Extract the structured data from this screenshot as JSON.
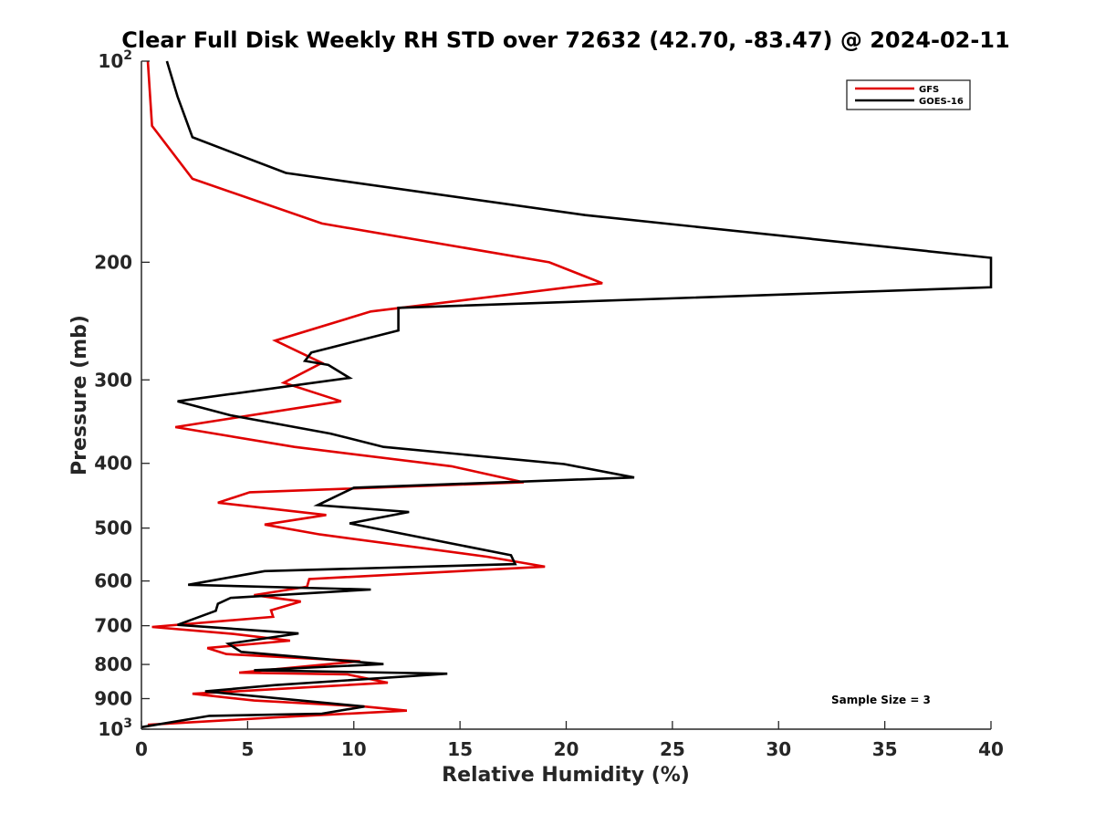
{
  "chart_data": {
    "type": "line",
    "title": "Clear Full Disk Weekly RH STD over 72632 (42.70, -83.47) @ 2024-02-11",
    "xlabel": "Relative Humidity (%)",
    "ylabel": "Pressure (mb)",
    "xlim": [
      0,
      40
    ],
    "ylim": [
      100,
      1000
    ],
    "yscale": "log",
    "y_reversed": true,
    "grid": false,
    "legend_position": "top-right",
    "xticks": [
      0,
      5,
      10,
      15,
      20,
      25,
      30,
      35,
      40
    ],
    "yticks": [
      {
        "value": 100,
        "label": "10",
        "sup": "2"
      },
      {
        "value": 200,
        "label": "200"
      },
      {
        "value": 300,
        "label": "300"
      },
      {
        "value": 400,
        "label": "400"
      },
      {
        "value": 500,
        "label": "500"
      },
      {
        "value": 600,
        "label": "600"
      },
      {
        "value": 700,
        "label": "700"
      },
      {
        "value": 800,
        "label": "800"
      },
      {
        "value": 900,
        "label": "900"
      },
      {
        "value": 1000,
        "label": "10",
        "sup": "3"
      }
    ],
    "annotation": "Sample Size = 3",
    "series": [
      {
        "name": "GFS",
        "color": "#e00000",
        "points": [
          [
            0.3,
            100
          ],
          [
            0.5,
            125
          ],
          [
            2.4,
            150
          ],
          [
            8.5,
            175
          ],
          [
            19.2,
            200
          ],
          [
            21.7,
            215
          ],
          [
            10.8,
            237
          ],
          [
            6.3,
            262
          ],
          [
            8.5,
            283
          ],
          [
            6.7,
            303
          ],
          [
            9.4,
            323
          ],
          [
            1.6,
            353
          ],
          [
            7.2,
            378
          ],
          [
            14.6,
            404
          ],
          [
            18.0,
            427
          ],
          [
            5.1,
            442
          ],
          [
            3.6,
            458
          ],
          [
            8.7,
            478
          ],
          [
            5.8,
            494
          ],
          [
            8.4,
            511
          ],
          [
            16.3,
            552
          ],
          [
            19.0,
            571
          ],
          [
            7.9,
            596
          ],
          [
            7.8,
            612
          ],
          [
            5.3,
            630
          ],
          [
            7.5,
            644
          ],
          [
            6.1,
            664
          ],
          [
            6.2,
            679
          ],
          [
            0.5,
            703
          ],
          [
            4.3,
            720
          ],
          [
            7.0,
            737
          ],
          [
            3.1,
            756
          ],
          [
            4.0,
            772
          ],
          [
            10.3,
            791
          ],
          [
            4.6,
            823
          ],
          [
            9.7,
            828
          ],
          [
            11.6,
            852
          ],
          [
            2.4,
            885
          ],
          [
            5.3,
            906
          ],
          [
            10.5,
            925
          ],
          [
            12.5,
            938
          ],
          [
            6.4,
            960
          ],
          [
            0.3,
            985
          ]
        ]
      },
      {
        "name": "GOES-16",
        "color": "#000000",
        "points": [
          [
            1.2,
            100
          ],
          [
            1.7,
            113
          ],
          [
            2.4,
            130
          ],
          [
            6.8,
            147
          ],
          [
            20.9,
            170
          ],
          [
            40.0,
            197
          ],
          [
            40.0,
            218
          ],
          [
            12.1,
            234
          ],
          [
            12.1,
            253
          ],
          [
            8.0,
            273
          ],
          [
            7.7,
            281
          ],
          [
            8.8,
            285
          ],
          [
            9.8,
            298
          ],
          [
            1.7,
            323
          ],
          [
            4.2,
            339
          ],
          [
            8.9,
            361
          ],
          [
            11.4,
            378
          ],
          [
            19.9,
            401
          ],
          [
            23.2,
            420
          ],
          [
            10.0,
            435
          ],
          [
            8.3,
            462
          ],
          [
            12.6,
            473
          ],
          [
            9.8,
            492
          ],
          [
            11.2,
            502
          ],
          [
            17.4,
            549
          ],
          [
            17.6,
            566
          ],
          [
            5.8,
            580
          ],
          [
            2.2,
            608
          ],
          [
            10.8,
            618
          ],
          [
            4.2,
            636
          ],
          [
            3.6,
            649
          ],
          [
            3.5,
            665
          ],
          [
            1.7,
            698
          ],
          [
            7.4,
            719
          ],
          [
            4.1,
            745
          ],
          [
            4.7,
            766
          ],
          [
            11.4,
            799
          ],
          [
            5.3,
            816
          ],
          [
            14.4,
            826
          ],
          [
            6.3,
            859
          ],
          [
            3.0,
            878
          ],
          [
            10.5,
            925
          ],
          [
            8.5,
            948
          ],
          [
            3.2,
            955
          ],
          [
            0.0,
            993
          ]
        ]
      }
    ]
  }
}
